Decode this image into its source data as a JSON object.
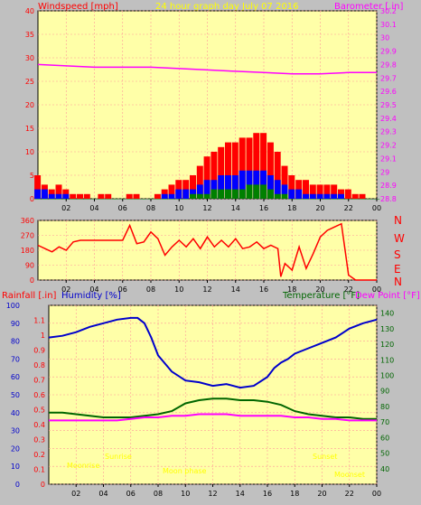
{
  "colors": {
    "background": "#c0c0c0",
    "plot_bg": "#ffffa8",
    "wind": "#ff0000",
    "wind_avg": "#0000ff",
    "wind_min": "#008000",
    "barometer": "#ff00ff",
    "direction": "#ff0000",
    "rain": "#ff0000",
    "humidity": "#0000cc",
    "temperature": "#006600",
    "dewpoint": "#ff00ff",
    "title": "#ffff00",
    "annotation": "#ffff00",
    "grid": "#ff9999"
  },
  "header": {
    "wind_label": "Windspeed [mph]",
    "title": "24 hour graph day   July 07 2016",
    "baro_label": "Barometer [.in]"
  },
  "panel2": {
    "compass": [
      "N",
      "W",
      "S",
      "E",
      "N"
    ]
  },
  "panel3": {
    "rain_label": "Rainfall [.in]",
    "humidity_label": "Humidity [%]",
    "temp_label": "Temperature [°F]",
    "dew_label": "Dew Point [°F]"
  },
  "annotations": {
    "moonrise": "Moonrise",
    "sunrise": "Sunrise",
    "moonset": "Moonset",
    "sunset": "Sunset",
    "moonphase": "Moon phase"
  },
  "chart_data": [
    {
      "type": "area",
      "title": "24 hour graph day   July 07 2016",
      "x_ticks": [
        "02",
        "04",
        "06",
        "08",
        "10",
        "12",
        "14",
        "16",
        "18",
        "20",
        "22",
        "00"
      ],
      "x_range": [
        0,
        24
      ],
      "y_left": {
        "label": "Windspeed [mph]",
        "range": [
          0,
          40
        ],
        "ticks": [
          0,
          5,
          10,
          15,
          20,
          25,
          30,
          35,
          40
        ]
      },
      "y_right": {
        "label": "Barometer [.in]",
        "range": [
          28.8,
          30.2
        ],
        "ticks": [
          "28.8",
          "28.9",
          "29",
          "29.1",
          "29.2",
          "29.3",
          "29.4",
          "29.5",
          "29.6",
          "29.7",
          "29.8",
          "29.9",
          "30",
          "30.1",
          "30.2"
        ]
      },
      "grid": true,
      "series": [
        {
          "name": "gust",
          "axis": "left",
          "color": "#ff0000",
          "style": "spikes",
          "x": [
            0,
            0.5,
            1,
            1.5,
            2,
            2.5,
            3,
            3.5,
            4,
            4.5,
            5,
            5.5,
            6,
            6.5,
            7,
            7.5,
            8,
            8.5,
            9,
            9.5,
            10,
            10.5,
            11,
            11.5,
            12,
            12.5,
            13,
            13.5,
            14,
            14.5,
            15,
            15.5,
            16,
            16.5,
            17,
            17.5,
            18,
            18.5,
            19,
            19.5,
            20,
            20.5,
            21,
            21.5,
            22,
            22.5,
            23,
            23.5,
            24
          ],
          "y": [
            5,
            3,
            2,
            3,
            2,
            1,
            1,
            1,
            0,
            1,
            1,
            0,
            0,
            1,
            1,
            0,
            0,
            1,
            2,
            3,
            4,
            4,
            5,
            7,
            9,
            10,
            11,
            12,
            12,
            13,
            13,
            14,
            14,
            12,
            10,
            7,
            5,
            4,
            4,
            3,
            3,
            3,
            3,
            2,
            2,
            1,
            1,
            0,
            0
          ]
        },
        {
          "name": "average",
          "axis": "left",
          "color": "#0000ff",
          "style": "spikes",
          "x": [
            0,
            0.5,
            1,
            1.5,
            2,
            2.5,
            3,
            3.5,
            4,
            4.5,
            5,
            5.5,
            6,
            6.5,
            7,
            7.5,
            8,
            8.5,
            9,
            9.5,
            10,
            10.5,
            11,
            11.5,
            12,
            12.5,
            13,
            13.5,
            14,
            14.5,
            15,
            15.5,
            16,
            16.5,
            17,
            17.5,
            18,
            18.5,
            19,
            19.5,
            20,
            20.5,
            21,
            21.5,
            22,
            22.5,
            23,
            23.5,
            24
          ],
          "y": [
            2,
            2,
            1,
            1,
            1,
            0,
            0,
            0,
            0,
            0,
            0,
            0,
            0,
            0,
            0,
            0,
            0,
            0,
            1,
            1,
            2,
            2,
            2,
            3,
            4,
            4,
            5,
            5,
            5,
            6,
            6,
            6,
            6,
            5,
            4,
            3,
            2,
            2,
            1,
            1,
            1,
            1,
            1,
            1,
            0,
            0,
            0,
            0,
            0
          ]
        },
        {
          "name": "minimum",
          "axis": "left",
          "color": "#008000",
          "style": "spikes",
          "x": [
            0,
            0.5,
            1,
            1.5,
            2,
            2.5,
            3,
            3.5,
            4,
            4.5,
            5,
            5.5,
            6,
            6.5,
            7,
            7.5,
            8,
            8.5,
            9,
            9.5,
            10,
            10.5,
            11,
            11.5,
            12,
            12.5,
            13,
            13.5,
            14,
            14.5,
            15,
            15.5,
            16,
            16.5,
            17,
            17.5,
            18,
            18.5,
            19,
            19.5,
            20,
            20.5,
            21,
            21.5,
            22,
            22.5,
            23,
            23.5,
            24
          ],
          "y": [
            0,
            0,
            0,
            0,
            0,
            0,
            0,
            0,
            0,
            0,
            0,
            0,
            0,
            0,
            0,
            0,
            0,
            0,
            0,
            0,
            0,
            0,
            1,
            1,
            1,
            2,
            2,
            2,
            2,
            2,
            3,
            3,
            3,
            2,
            1,
            1,
            0,
            0,
            0,
            0,
            0,
            0,
            0,
            0,
            0,
            0,
            0,
            0,
            0
          ]
        },
        {
          "name": "barometer",
          "axis": "right",
          "color": "#ff00ff",
          "style": "line",
          "x": [
            0,
            2,
            4,
            6,
            8,
            10,
            12,
            14,
            16,
            18,
            20,
            22,
            24
          ],
          "y": [
            29.8,
            29.79,
            29.78,
            29.78,
            29.78,
            29.77,
            29.76,
            29.75,
            29.74,
            29.73,
            29.73,
            29.74,
            29.74
          ]
        }
      ]
    },
    {
      "type": "line",
      "x_ticks": [
        "02",
        "04",
        "06",
        "08",
        "10",
        "12",
        "14",
        "16",
        "18",
        "20",
        "22",
        "00"
      ],
      "x_range": [
        0,
        24
      ],
      "y_left": {
        "range": [
          0,
          360
        ],
        "ticks": [
          0,
          90,
          180,
          270,
          360
        ]
      },
      "y_right_labels": [
        "N",
        "W",
        "S",
        "E",
        "N"
      ],
      "grid": true,
      "series": [
        {
          "name": "direction",
          "color": "#ff0000",
          "x": [
            0,
            0.5,
            1,
            1.5,
            2,
            2.5,
            3,
            4,
            5,
            6,
            6.5,
            7,
            7.5,
            8,
            8.5,
            9,
            9.5,
            10,
            10.5,
            11,
            11.5,
            12,
            12.5,
            13,
            13.5,
            14,
            14.5,
            15,
            15.5,
            16,
            16.5,
            17,
            17.2,
            17.5,
            18,
            18.5,
            19,
            19.5,
            20,
            20.5,
            21,
            21.5,
            22,
            22.5,
            23,
            23.5,
            24
          ],
          "y": [
            210,
            190,
            170,
            200,
            180,
            230,
            240,
            240,
            240,
            240,
            330,
            220,
            230,
            290,
            250,
            150,
            200,
            240,
            200,
            250,
            190,
            260,
            200,
            240,
            200,
            250,
            190,
            200,
            230,
            190,
            210,
            190,
            20,
            100,
            60,
            200,
            70,
            160,
            260,
            300,
            320,
            340,
            30,
            0,
            0,
            0,
            0
          ]
        }
      ]
    },
    {
      "type": "line",
      "x_ticks": [
        "02",
        "04",
        "06",
        "08",
        "10",
        "12",
        "14",
        "16",
        "18",
        "20",
        "22",
        "00"
      ],
      "x_range": [
        0,
        24
      ],
      "y_left_humidity": {
        "label": "Humidity [%]",
        "range": [
          0,
          100
        ],
        "ticks": [
          0,
          10,
          20,
          30,
          40,
          50,
          60,
          70,
          80,
          90,
          100
        ]
      },
      "y_left_rain": {
        "label": "Rainfall [.in]",
        "range": [
          0,
          1.2
        ],
        "ticks": [
          "0",
          "0.1",
          "0.2",
          "0.3",
          "0.4",
          "0.5",
          "0.6",
          "0.7",
          "0.8",
          "0.9",
          "1",
          "1.1"
        ]
      },
      "y_right": {
        "label": "Temperature [°F]",
        "range": [
          30,
          145
        ],
        "ticks": [
          40,
          50,
          60,
          70,
          80,
          90,
          100,
          110,
          120,
          130,
          140
        ]
      },
      "grid": true,
      "series": [
        {
          "name": "humidity",
          "axis": "humidity",
          "color": "#0000cc",
          "x": [
            0,
            1,
            2,
            3,
            4,
            5,
            6,
            6.5,
            7,
            7.5,
            8,
            9,
            10,
            11,
            12,
            13,
            14,
            15,
            16,
            16.5,
            17,
            17.5,
            18,
            19,
            20,
            21,
            22,
            23,
            24
          ],
          "y": [
            82,
            83,
            85,
            88,
            90,
            92,
            93,
            93,
            90,
            82,
            72,
            63,
            58,
            57,
            55,
            56,
            54,
            55,
            60,
            65,
            68,
            70,
            73,
            76,
            79,
            82,
            87,
            90,
            92
          ]
        },
        {
          "name": "temperature",
          "axis": "right",
          "color": "#006600",
          "x": [
            0,
            1,
            2,
            3,
            4,
            5,
            6,
            7,
            8,
            9,
            10,
            11,
            12,
            13,
            14,
            15,
            16,
            17,
            18,
            19,
            20,
            21,
            22,
            23,
            24
          ],
          "y": [
            76,
            76,
            75,
            74,
            73,
            73,
            73,
            74,
            75,
            77,
            82,
            84,
            85,
            85,
            84,
            84,
            83,
            81,
            77,
            75,
            74,
            73,
            73,
            72,
            72
          ]
        },
        {
          "name": "dewpoint",
          "axis": "right",
          "color": "#ff00ff",
          "x": [
            0,
            1,
            2,
            3,
            4,
            5,
            6,
            7,
            8,
            9,
            10,
            11,
            12,
            13,
            14,
            15,
            16,
            17,
            18,
            19,
            20,
            21,
            22,
            23,
            24
          ],
          "y": [
            71,
            71,
            71,
            71,
            71,
            71,
            72,
            73,
            73,
            74,
            74,
            75,
            75,
            75,
            74,
            74,
            74,
            74,
            73,
            73,
            72,
            72,
            71,
            71,
            71
          ]
        }
      ]
    }
  ]
}
